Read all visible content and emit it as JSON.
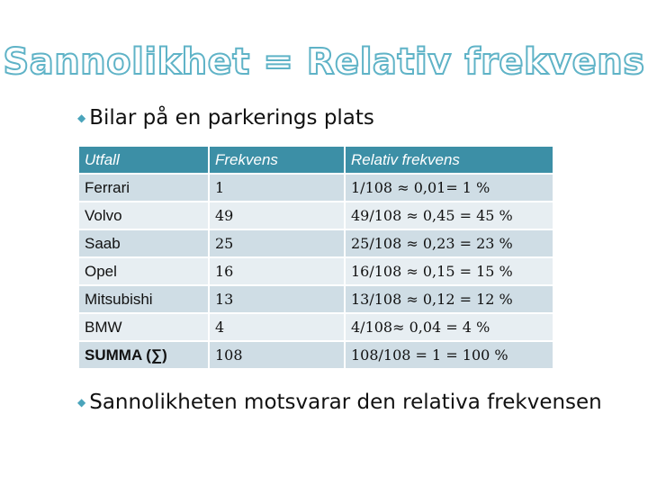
{
  "title": "Sannolikhet = Relativ frekvens",
  "bullets": {
    "first": "Bilar på en parkerings plats",
    "second": "Sannolikheten motsvarar den relativa frekvensen"
  },
  "table": {
    "headers": [
      "Utfall",
      "Frekvens",
      "Relativ frekvens"
    ],
    "rows": [
      [
        "Ferrari",
        "1",
        "1/108 ≈ 0,01= 1 %"
      ],
      [
        "Volvo",
        "49",
        "49/108 ≈ 0,45 = 45 %"
      ],
      [
        "Saab",
        "25",
        "25/108 ≈ 0,23 = 23 %"
      ],
      [
        "Opel",
        "16",
        "16/108 ≈ 0,15 = 15 %"
      ],
      [
        "Mitsubishi",
        "13",
        "13/108 ≈ 0,12 = 12 %"
      ],
      [
        "BMW",
        "4",
        "4/108≈ 0,04 = 4 %"
      ],
      [
        "SUMMA (∑)",
        "108",
        "108/108 = 1 = 100 %"
      ]
    ]
  },
  "colors": {
    "title_outline": "#5fb3c7",
    "bullet_marker": "#4aa4bb",
    "header_bg": "#3c8fa6",
    "row_dark": "#cfdde5",
    "row_light": "#e7eef2"
  },
  "icons": {
    "bullet_marker": "bullet-icon"
  }
}
